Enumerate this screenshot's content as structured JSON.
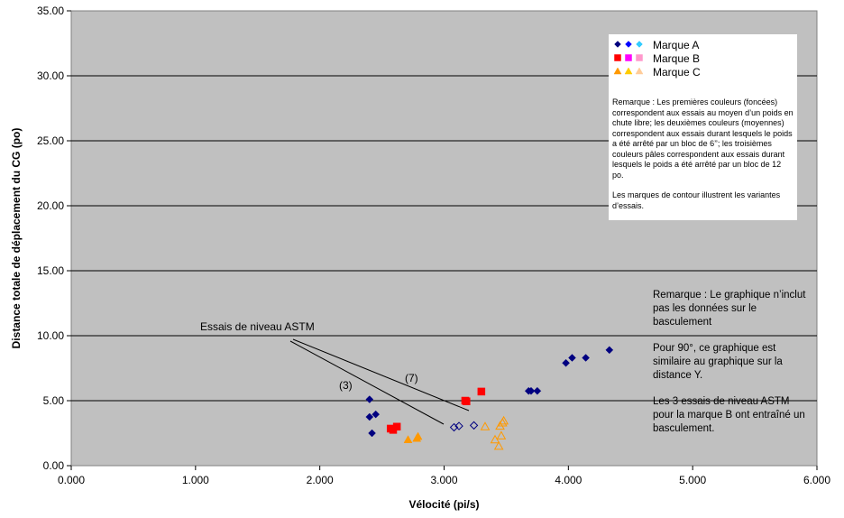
{
  "chart_data": {
    "type": "scatter",
    "xlabel": "Vélocité (pi/s)",
    "ylabel": "Distance totale de déplacement du CG (po)",
    "xlim": [
      0,
      6
    ],
    "ylim": [
      0,
      35
    ],
    "xticks": [
      "0.000",
      "1.000",
      "2.000",
      "3.000",
      "4.000",
      "5.000",
      "6.000"
    ],
    "yticks": [
      "0.00",
      "5.00",
      "10.00",
      "15.00",
      "20.00",
      "25.00",
      "30.00",
      "35.00"
    ],
    "grid": "horizontal",
    "background": "#c0c0c0",
    "legend": {
      "placement": "top-right",
      "entries": [
        {
          "label": "Marque A",
          "marker": "diamond",
          "colors": [
            "#000080",
            "#0000ff",
            "#33ccff"
          ]
        },
        {
          "label": "Marque B",
          "marker": "square",
          "colors": [
            "#ff0000",
            "#ff00ff",
            "#ff99cc"
          ]
        },
        {
          "label": "Marque C",
          "marker": "triangle",
          "colors": [
            "#ff9900",
            "#ffcc00",
            "#ffcc99"
          ]
        }
      ]
    },
    "series": [
      {
        "name": "Marque A",
        "marker": "diamond",
        "color": "#000080",
        "filled": true,
        "points": [
          [
            2.4,
            5.1
          ],
          [
            2.4,
            3.75
          ],
          [
            2.45,
            3.95
          ],
          [
            2.42,
            2.5
          ],
          [
            3.68,
            5.75
          ],
          [
            3.7,
            5.75
          ],
          [
            3.75,
            5.75
          ],
          [
            3.98,
            7.9
          ],
          [
            4.03,
            8.3
          ],
          [
            4.14,
            8.3
          ],
          [
            4.33,
            8.9
          ]
        ]
      },
      {
        "name": "Marque A",
        "marker": "diamond",
        "color": "#000080",
        "filled": false,
        "points": [
          [
            3.08,
            2.95
          ],
          [
            3.12,
            3.05
          ],
          [
            3.24,
            3.1
          ]
        ]
      },
      {
        "name": "Marque B",
        "marker": "square",
        "color": "#ff0000",
        "filled": true,
        "points": [
          [
            2.57,
            2.85
          ],
          [
            2.59,
            2.75
          ],
          [
            2.62,
            3.0
          ],
          [
            3.17,
            5.0
          ],
          [
            3.18,
            4.95
          ],
          [
            3.3,
            5.7
          ]
        ]
      },
      {
        "name": "Marque C",
        "marker": "triangle",
        "color": "#ff9900",
        "filled": true,
        "points": [
          [
            2.71,
            2.0
          ],
          [
            2.78,
            2.1
          ],
          [
            2.79,
            2.25
          ]
        ]
      },
      {
        "name": "Marque C",
        "marker": "triangle",
        "color": "#ff9900",
        "filled": false,
        "points": [
          [
            3.33,
            3.0
          ],
          [
            3.41,
            2.0
          ],
          [
            3.44,
            1.5
          ],
          [
            3.45,
            3.05
          ],
          [
            3.46,
            2.3
          ],
          [
            3.47,
            3.3
          ],
          [
            3.48,
            3.45
          ]
        ]
      }
    ],
    "annotations": {
      "astm_label": "Essais de niveau ASTM",
      "label_3": "(3)",
      "label_7": "(7)",
      "legend_note_1": "Remarque : Les premières couleurs (foncées) correspondent aux essais au moyen d’un poids en chute libre; les deuxièmes couleurs (moyennes) correspondent aux essais durant lesquels le poids a été arrêté par un bloc de 6’’; les troisièmes couleurs pâles correspondent aux essais durant lesquels le poids a été arrêté par un bloc de 12 po.",
      "legend_note_2": "Les marques de contour illustrent les variantes d’essais.",
      "side_note_1": "Remarque : Le graphique n’inclut pas les données sur le basculement",
      "side_note_2": "Pour 90°, ce graphique est similaire au graphique sur la distance Y.",
      "side_note_3": "Les 3 essais de niveau ASTM pour la marque B ont entraîné un basculement."
    }
  }
}
